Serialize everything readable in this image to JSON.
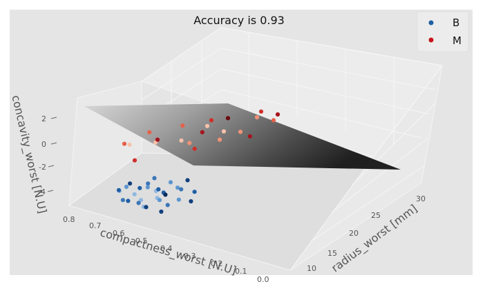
{
  "chart_data": {
    "type": "scatter",
    "projection": "3d",
    "title": "Accuracy is 0.93",
    "xlabel": "radius_worst [mm]",
    "ylabel": "compactness_worst [N.U]",
    "zlabel": "concavity_worst [N.U]",
    "xticks": [
      "10",
      "15",
      "20",
      "25",
      "30"
    ],
    "yticks": [
      "0.0",
      "0.1",
      "0.2",
      "0.3",
      "0.4",
      "0.5",
      "0.6",
      "0.7",
      "0.8"
    ],
    "zticks": [
      "2",
      "0",
      "-2",
      "-4"
    ],
    "xlim": [
      7,
      33
    ],
    "ylim": [
      0,
      0.85
    ],
    "zlim": [
      -5.5,
      3.5
    ],
    "grid": true,
    "legend_position": "top-right",
    "decision_surface": "tilted plane separating B (below) from M (above), grey gradient",
    "series": [
      {
        "name": "B",
        "color": "#1f5fa6",
        "colormap": "Blues",
        "points": [
          {
            "x": 11,
            "y": 0.22,
            "z": -1.2
          },
          {
            "x": 12,
            "y": 0.18,
            "z": -1.8
          },
          {
            "x": 13,
            "y": 0.2,
            "z": -2.4
          },
          {
            "x": 12.5,
            "y": 0.15,
            "z": -3.0
          },
          {
            "x": 13.5,
            "y": 0.12,
            "z": -2.6
          },
          {
            "x": 14,
            "y": 0.16,
            "z": -2.0
          },
          {
            "x": 14.5,
            "y": 0.25,
            "z": -1.5
          },
          {
            "x": 15,
            "y": 0.2,
            "z": -2.8
          },
          {
            "x": 15.5,
            "y": 0.1,
            "z": -3.2
          },
          {
            "x": 16,
            "y": 0.14,
            "z": -2.2
          },
          {
            "x": 16.5,
            "y": 0.22,
            "z": -1.6
          },
          {
            "x": 13,
            "y": 0.3,
            "z": -1.0
          },
          {
            "x": 12,
            "y": 0.26,
            "z": -2.0
          },
          {
            "x": 11.5,
            "y": 0.12,
            "z": -2.6
          },
          {
            "x": 14,
            "y": 0.08,
            "z": -3.4
          },
          {
            "x": 15,
            "y": 0.28,
            "z": -1.2
          },
          {
            "x": 16,
            "y": 0.3,
            "z": -0.9
          },
          {
            "x": 17,
            "y": 0.18,
            "z": -2.4
          },
          {
            "x": 17.5,
            "y": 0.12,
            "z": -2.9
          },
          {
            "x": 13.5,
            "y": 0.24,
            "z": -1.4
          },
          {
            "x": 12.5,
            "y": 0.32,
            "z": -1.1
          },
          {
            "x": 14.5,
            "y": 0.14,
            "z": -2.3
          },
          {
            "x": 15.5,
            "y": 0.24,
            "z": -1.9
          },
          {
            "x": 11,
            "y": 0.16,
            "z": -2.2
          },
          {
            "x": 16.5,
            "y": 0.08,
            "z": -3.6
          },
          {
            "x": 18,
            "y": 0.2,
            "z": -1.8
          },
          {
            "x": 13,
            "y": 0.06,
            "z": -3.8
          },
          {
            "x": 14,
            "y": 0.34,
            "z": -0.8
          },
          {
            "x": 12,
            "y": 0.1,
            "z": -3.1
          },
          {
            "x": 15,
            "y": 0.16,
            "z": -2.5
          }
        ]
      },
      {
        "name": "M",
        "color": "#c8141c",
        "colormap": "Reds",
        "points": [
          {
            "x": 18,
            "y": 0.6,
            "z": 2.4
          },
          {
            "x": 20,
            "y": 0.55,
            "z": 2.0
          },
          {
            "x": 22,
            "y": 0.5,
            "z": 1.6
          },
          {
            "x": 24,
            "y": 0.45,
            "z": 2.2
          },
          {
            "x": 25,
            "y": 0.4,
            "z": 1.4
          },
          {
            "x": 26,
            "y": 0.35,
            "z": 1.0
          },
          {
            "x": 23,
            "y": 0.3,
            "z": 0.8
          },
          {
            "x": 21,
            "y": 0.38,
            "z": 1.2
          },
          {
            "x": 27,
            "y": 0.3,
            "z": 1.8
          },
          {
            "x": 28,
            "y": 0.25,
            "z": 1.2
          },
          {
            "x": 24,
            "y": 0.62,
            "z": 2.8
          },
          {
            "x": 19,
            "y": 0.7,
            "z": 2.6
          },
          {
            "x": 22,
            "y": 0.72,
            "z": 3.0
          },
          {
            "x": 26,
            "y": 0.55,
            "z": 2.6
          },
          {
            "x": 29,
            "y": 0.4,
            "z": 2.2
          },
          {
            "x": 17,
            "y": 0.5,
            "z": 1.0
          },
          {
            "x": 20,
            "y": 0.28,
            "z": 0.6
          },
          {
            "x": 25,
            "y": 0.22,
            "z": 0.4
          },
          {
            "x": 30,
            "y": 0.35,
            "z": 1.6
          },
          {
            "x": 23,
            "y": 0.42,
            "z": 1.8
          },
          {
            "x": 21,
            "y": 0.6,
            "z": 2.2
          },
          {
            "x": 27,
            "y": 0.5,
            "z": 2.4
          }
        ]
      }
    ]
  }
}
